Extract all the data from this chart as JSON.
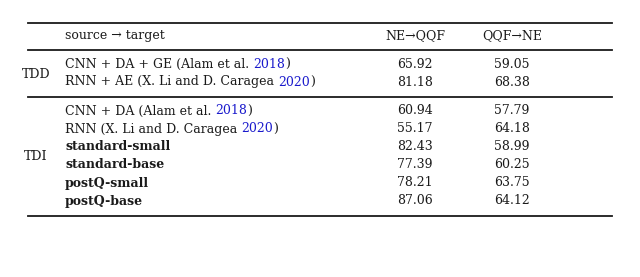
{
  "header_col1": "source → target",
  "header_col2": "NE→QQF",
  "header_col3": "QQF→NE",
  "sections": [
    {
      "label": "TDD",
      "rows": [
        {
          "parts": [
            {
              "text": "CNN + DA + GE (Alam et al. ",
              "color": "#1a1a1a",
              "bold": false
            },
            {
              "text": "2018",
              "color": "#1a1acc",
              "bold": false
            },
            {
              "text": ")",
              "color": "#1a1a1a",
              "bold": false
            }
          ],
          "ne_qqf": "65.92",
          "qqf_ne": "59.05"
        },
        {
          "parts": [
            {
              "text": "RNN + AE (X. Li and D. Caragea ",
              "color": "#1a1a1a",
              "bold": false
            },
            {
              "text": "2020",
              "color": "#1a1acc",
              "bold": false
            },
            {
              "text": ")",
              "color": "#1a1a1a",
              "bold": false
            }
          ],
          "ne_qqf": "81.18",
          "qqf_ne": "68.38"
        }
      ]
    },
    {
      "label": "TDI",
      "rows": [
        {
          "parts": [
            {
              "text": "CNN + DA (Alam et al. ",
              "color": "#1a1a1a",
              "bold": false
            },
            {
              "text": "2018",
              "color": "#1a1acc",
              "bold": false
            },
            {
              "text": ")",
              "color": "#1a1a1a",
              "bold": false
            }
          ],
          "ne_qqf": "60.94",
          "qqf_ne": "57.79"
        },
        {
          "parts": [
            {
              "text": "RNN (X. Li and D. Caragea ",
              "color": "#1a1a1a",
              "bold": false
            },
            {
              "text": "2020",
              "color": "#1a1acc",
              "bold": false
            },
            {
              "text": ")",
              "color": "#1a1a1a",
              "bold": false
            }
          ],
          "ne_qqf": "55.17",
          "qqf_ne": "64.18"
        },
        {
          "parts": [
            {
              "text": "standard-small",
              "color": "#1a1a1a",
              "bold": true
            }
          ],
          "ne_qqf": "82.43",
          "qqf_ne": "58.99"
        },
        {
          "parts": [
            {
              "text": "standard-base",
              "color": "#1a1a1a",
              "bold": true
            }
          ],
          "ne_qqf": "77.39",
          "qqf_ne": "60.25"
        },
        {
          "parts": [
            {
              "text": "postQ-small",
              "color": "#1a1a1a",
              "bold": true
            }
          ],
          "ne_qqf": "78.21",
          "qqf_ne": "63.75"
        },
        {
          "parts": [
            {
              "text": "postQ-base",
              "color": "#1a1a1a",
              "bold": true
            }
          ],
          "ne_qqf": "87.06",
          "qqf_ne": "64.12"
        }
      ]
    }
  ],
  "bg_color": "#ffffff",
  "font_size": 9.0,
  "fig_width": 6.4,
  "fig_height": 2.77,
  "dpi": 100
}
